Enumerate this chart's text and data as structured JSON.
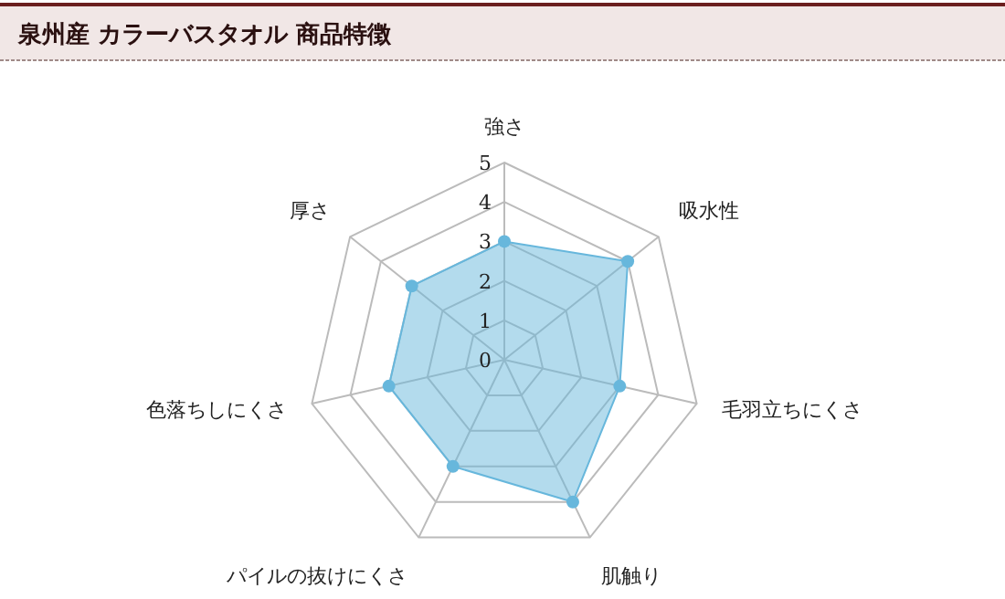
{
  "chart_data": {
    "type": "radar",
    "title": "泉州産 カラーバスタオル 商品特徴",
    "categories": [
      "強さ",
      "吸水性",
      "毛羽立ちにくさ",
      "肌触り",
      "パイルの抜けにくさ",
      "色落ちしにくさ",
      "厚さ"
    ],
    "series": [
      {
        "color": "#67b7dc",
        "values": [
          3,
          4,
          3,
          4,
          3,
          3,
          3
        ]
      }
    ],
    "ylim": [
      0,
      5
    ],
    "yticks": [
      0,
      1,
      2,
      3,
      4,
      5
    ],
    "marker": "circle",
    "grid": true
  }
}
